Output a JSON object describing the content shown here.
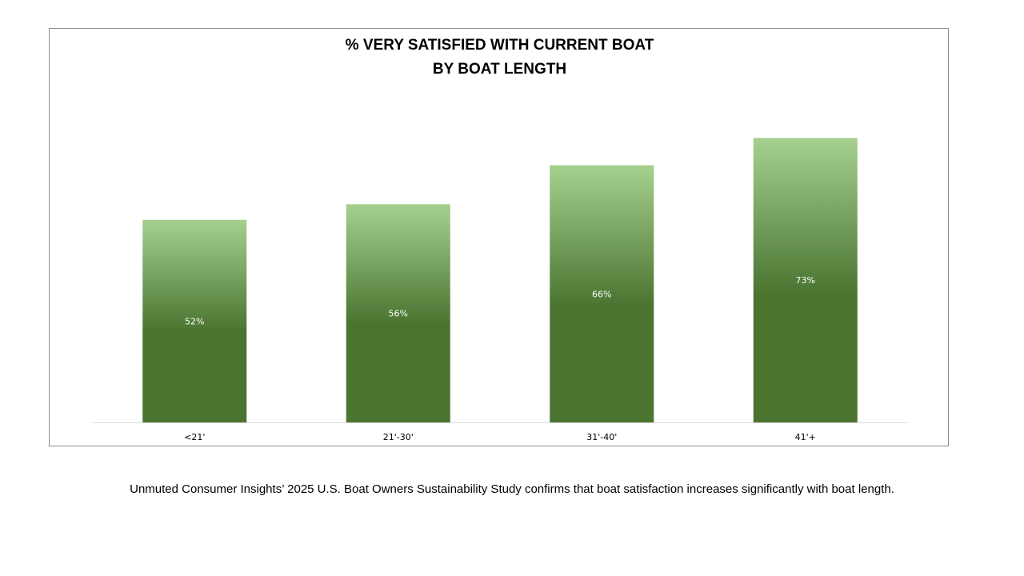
{
  "chart_data": {
    "type": "bar",
    "title_lines": [
      "% VERY SATISFIED WITH CURRENT BOAT",
      "BY BOAT LENGTH"
    ],
    "categories": [
      "<21'",
      "21'-30'",
      "31'-40'",
      "41'+"
    ],
    "values": [
      52,
      56,
      66,
      73
    ],
    "data_labels": [
      "52%",
      "56%",
      "66%",
      "73%"
    ],
    "xlabel": "",
    "ylabel": "",
    "ylim": [
      0,
      100
    ],
    "grid": false,
    "legend": "none",
    "colors": {
      "bar_top": "#a5d08e",
      "bar_bottom": "#4a7430",
      "axis_line": "#d9d9d9",
      "frame": "#8c8c8c"
    }
  },
  "caption": "Unmuted Consumer Insights’ 2025 U.S. Boat Owners Sustainability Study confirms that boat satisfaction increases significantly with boat length."
}
